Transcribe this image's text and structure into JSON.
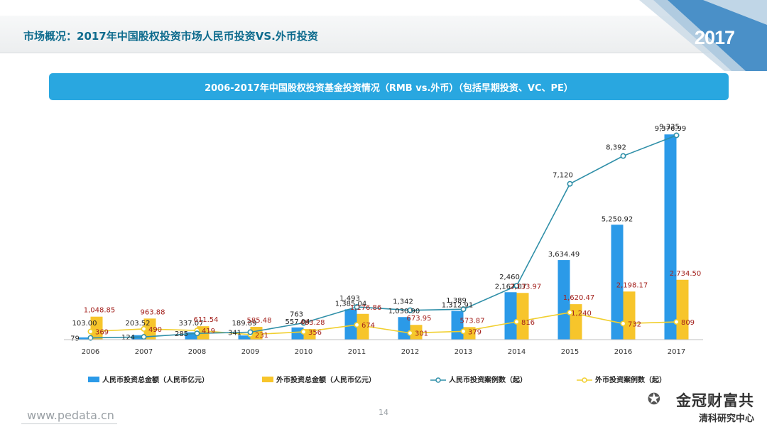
{
  "header": {
    "title": "市场概况：2017年中国股权投资市场人民币投资VS.外币投资",
    "year_badge": "2017"
  },
  "chart_title": "2006-2017年中国股权投资基金投资情况（RMB vs.外币）（包括早期投资、VC、PE）",
  "chart_data": {
    "type": "bar+line",
    "categories": [
      "2006",
      "2007",
      "2008",
      "2009",
      "2010",
      "2011",
      "2012",
      "2013",
      "2014",
      "2015",
      "2016",
      "2017"
    ],
    "series": [
      {
        "name": "人民币投资总金额（人民币亿元）",
        "kind": "bar",
        "color": "#2b9ae8",
        "values": [
          103.0,
          203.52,
          337.07,
          189.89,
          557.04,
          1385.04,
          1030.9,
          1312.91,
          2167.07,
          3634.49,
          5250.92,
          9376.99
        ],
        "labels": [
          "103.00",
          "203.52",
          "337.07",
          "189.89",
          "557.04",
          "1,385.04",
          "1,030.90",
          "1,312.91",
          "2,167.07",
          "3,634.49",
          "5,250.92",
          "9,376.99"
        ]
      },
      {
        "name": "外币投资总金额（人民币亿元）",
        "kind": "bar",
        "color": "#f7c52b",
        "values": [
          1048.85,
          963.88,
          611.54,
          585.48,
          483.28,
          1176.86,
          673.95,
          573.87,
          2133.97,
          1620.47,
          2198.17,
          2734.5
        ],
        "labels": [
          "1,048.85",
          "963.88",
          "611.54",
          "585.48",
          "483.28",
          "1,176.86",
          "673.95",
          "573.87",
          "2,133.97",
          "1,620.47",
          "2,198.17",
          "2,734.50"
        ]
      },
      {
        "name": "人民币投资案例数（起）",
        "kind": "line",
        "color": "#2f8fa8",
        "values": [
          79,
          124,
          285,
          341,
          763,
          1493,
          1342,
          1389,
          2460,
          7120,
          8392,
          9335
        ],
        "labels": [
          "79",
          "124",
          "285",
          "341",
          "763",
          "1,493",
          "1,342",
          "1,389",
          "2,460",
          "7,120",
          "8,392",
          "9,335"
        ]
      },
      {
        "name": "外币投资案例数（起）",
        "kind": "line",
        "color": "#f1cf2e",
        "values": [
          369,
          490,
          419,
          231,
          356,
          674,
          301,
          379,
          816,
          1240,
          732,
          809
        ],
        "labels": [
          "369",
          "490",
          "419",
          "231",
          "356",
          "674",
          "301",
          "379",
          "816",
          "1,240",
          "732",
          "809"
        ]
      }
    ],
    "ylim": [
      0,
      10000
    ]
  },
  "legend": [
    {
      "label": "人民币投资总金额（人民币亿元）",
      "color": "#2b9ae8",
      "kind": "bar"
    },
    {
      "label": "外币投资总金额（人民币亿元）",
      "color": "#f7c52b",
      "kind": "bar"
    },
    {
      "label": "人民币投资案例数（起）",
      "color": "#2f8fa8",
      "kind": "line"
    },
    {
      "label": "外币投资案例数（起）",
      "color": "#f1cf2e",
      "kind": "line"
    }
  ],
  "footer": {
    "url": "www.pedata.cn",
    "page": "14"
  },
  "watermark": {
    "name": "金冠财富共",
    "sub": "清科研究中心"
  }
}
